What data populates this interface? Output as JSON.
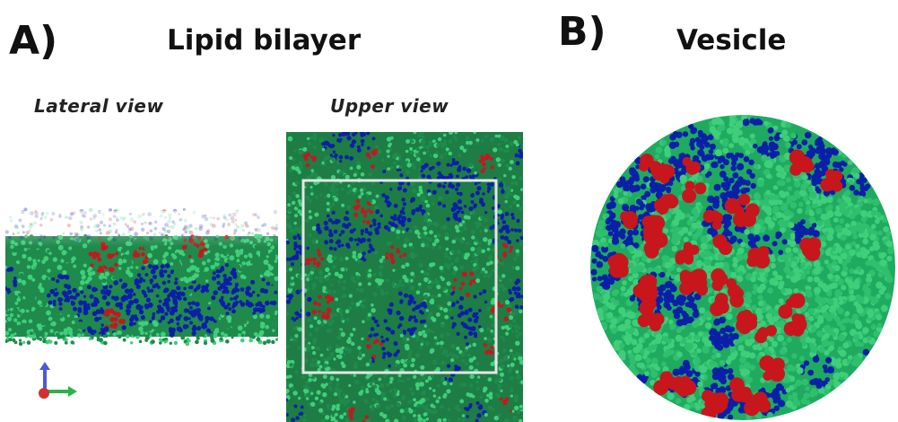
{
  "panel_a": {
    "letter": "A)",
    "title": "Lipid bilayer",
    "lateral_label": "Lateral view",
    "upper_label": "Upper view"
  },
  "panel_b": {
    "letter": "B)",
    "title": "Vesicle"
  },
  "colors": {
    "green": "#1f8a4c",
    "green_light": "#3fcf7a",
    "blue": "#0b1fa8",
    "red": "#c8161d",
    "box_outline": "#e6e6e6",
    "axis_y": "#4a5bd4",
    "axis_x": "#2bb24c",
    "axis_origin": "#d03030"
  },
  "icons": {
    "axis": "xyz-axis-icon"
  }
}
